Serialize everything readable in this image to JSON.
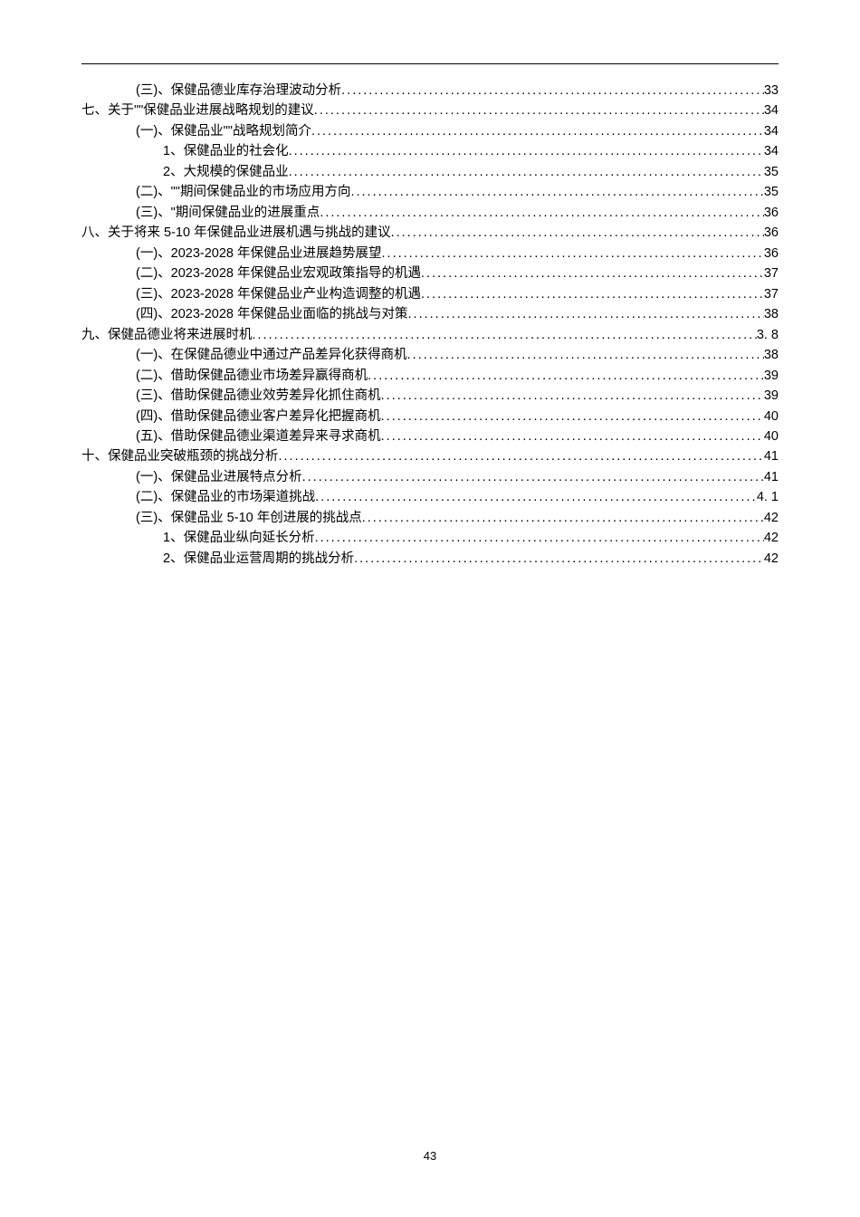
{
  "page_footer": "43",
  "styles": {
    "font_size_pt": 11,
    "line_height": 1.55,
    "text_color": "#000000",
    "background_color": "#ffffff",
    "dot_leader_color": "#000000",
    "rule_color": "#000000"
  },
  "toc": [
    {
      "text": "(三)、保健品德业库存治理波动分析",
      "page": "33",
      "indent": 2
    },
    {
      "text": "七、关于\"\"保健品业进展战略规划的建议",
      "page": "34",
      "indent": 0
    },
    {
      "text": "(一)、保健品业\"\"战略规划简介",
      "page": "34",
      "indent": 2
    },
    {
      "text": "1、保健品业的社会化",
      "page": "34",
      "indent": 3
    },
    {
      "text": "2、大规模的保健品业",
      "page": "35",
      "indent": 3
    },
    {
      "text": "(二)、\"\"期间保健品业的市场应用方向",
      "page": "35",
      "indent": 2
    },
    {
      "text": "(三)、\"期间保健品业的进展重点",
      "page": "36",
      "indent": 2
    },
    {
      "text": "八、关于将来 5-10 年保健品业进展机遇与挑战的建议",
      "page": "36",
      "indent": 0
    },
    {
      "text": "(一)、2023-2028 年保健品业进展趋势展望",
      "page": "36",
      "indent": 2
    },
    {
      "text": "(二)、2023-2028 年保健品业宏观政策指导的机遇",
      "page": "37",
      "indent": 2
    },
    {
      "text": "(三)、2023-2028 年保健品业产业构造调整的机遇",
      "page": "37",
      "indent": 2
    },
    {
      "text": "(四)、2023-2028 年保健品业面临的挑战与对策",
      "page": "38",
      "indent": 2
    },
    {
      "text": "九、保健品德业将来进展时机 ",
      "page": "3. 8",
      "indent": 0
    },
    {
      "text": "(一)、在保健品德业中通过产品差异化获得商机",
      "page": "38",
      "indent": 2
    },
    {
      "text": "(二)、借助保健品德业市场差异赢得商机",
      "page": "39",
      "indent": 2
    },
    {
      "text": "(三)、借助保健品德业效劳差异化抓住商机",
      "page": "39",
      "indent": 2
    },
    {
      "text": "(四)、借助保健品德业客户差异化把握商机",
      "page": "40",
      "indent": 2
    },
    {
      "text": "(五)、借助保健品德业渠道差异来寻求商机",
      "page": "40",
      "indent": 2
    },
    {
      "text": "十、保健品业突破瓶颈的挑战分析",
      "page": "41",
      "indent": 0
    },
    {
      "text": "(一)、保健品业进展特点分析",
      "page": "41",
      "indent": 2
    },
    {
      "text": "(二)、保健品业的市场渠道挑战 ",
      "page": "4. 1",
      "indent": 2
    },
    {
      "text": "(三)、保健品业 5-10 年创进展的挑战点",
      "page": "42",
      "indent": 2
    },
    {
      "text": "1、保健品业纵向延长分析",
      "page": "42",
      "indent": 3
    },
    {
      "text": "2、保健品业运营周期的挑战分析",
      "page": "42",
      "indent": 3
    }
  ]
}
